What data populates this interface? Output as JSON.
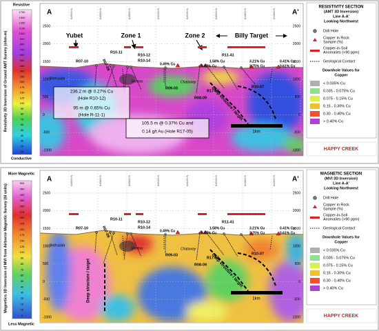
{
  "panels": [
    {
      "axis_label": "Resistivity 3D Inversion of Ground AMT Survey (ohm-m)",
      "colorbar": {
        "top": "Resistive",
        "bottom": "Conductive",
        "ticks": [
          "1750",
          "1500",
          "1250",
          "1100",
          "1000",
          "900",
          "800",
          "700",
          "600",
          "500",
          "400",
          "300",
          "250",
          "200",
          "175",
          "150",
          "125",
          "100",
          "90",
          "80",
          "70",
          "60",
          "50",
          "40",
          "30",
          "20",
          "10"
        ]
      },
      "section_ends": [
        "A",
        "A'"
      ],
      "elevations": [
        "2500",
        "2000",
        "1500",
        "1000",
        "500",
        "0",
        "-500",
        "-1000"
      ],
      "eastings": [
        "646000 N",
        "645800 N",
        "645600 N",
        "645400 N",
        "645200 N",
        "645000 N",
        "644800 N",
        "644600 N"
      ],
      "zones": [
        "Yubet",
        "Zone 1",
        "Zone 2",
        "Billy Target"
      ],
      "holes": [
        "R10-11",
        "R10-12",
        "R10-14",
        "R07-10",
        "R07-08",
        "R11-41",
        "R09-03",
        "R08-09",
        "R17-05",
        "R10-07"
      ],
      "assays": [
        "0.49% Cu",
        "1.58% Cu",
        "0.87% Cu",
        "3.21% Cu",
        "2.75% Cu",
        "0.41% Cu",
        "0.61% Cu"
      ],
      "units": [
        "Bethsaida",
        "Skeena",
        "Chataway"
      ],
      "structure": [
        "Deep structure / target"
      ],
      "scale": "1km",
      "intercepts": [
        [
          "236.2 m @ 0.27% Cu",
          "(Hole R10-12)",
          "95 m @ 0.65% Cu",
          "(Hole R-11-1)"
        ],
        [
          "105.5 m @ 0.37% Cu and",
          "0.14 g/t Au (Hole R17-05)"
        ]
      ],
      "legend": {
        "title": [
          "RESISTIVITY SECTION",
          "(AMT 3D Inversion)",
          "Line A-A'",
          "Looking Northwest"
        ],
        "items": [
          "Drill Hole",
          "Copper in Rock",
          "Sample (%)",
          "Copper-in-Soil",
          "Anomalies (>90 ppm)",
          "Geological Contact"
        ],
        "downhole_title": [
          "Downhole Values for",
          "Copper"
        ],
        "downhole": [
          "< 0.035% Cu",
          "0.035 - 0.075% Cu",
          "0.075 - 0.15% Cu",
          "0.15 - 0.30% Cu",
          "0.30 - 0.40% Cu",
          "> 0.40% Cu"
        ]
      },
      "logo": "HAPPY CREEK"
    },
    {
      "axis_label": "Magnetics 3D Inversion of MVI from Airborne Magnetic Survey (SI units)",
      "colorbar": {
        "top": "More Magnetic",
        "bottom": "Less Magnetic",
        "ticks": [
          "500",
          "450",
          "400",
          "350",
          "300",
          "275",
          "250",
          "225",
          "200",
          "175",
          "150",
          "125",
          "100",
          "90",
          "80",
          "70",
          "60",
          "50",
          "40",
          "30",
          "20",
          "15",
          "10",
          "5"
        ]
      },
      "section_ends": [
        "A",
        "A'"
      ],
      "elevations": [
        "2500",
        "2000",
        "1500",
        "1000",
        "500",
        "0",
        "-500",
        "-1000"
      ],
      "eastings": [
        "646000 N",
        "645800 N",
        "645600 N",
        "645400 N",
        "645200 N",
        "645000 N",
        "644800 N",
        "644600 N"
      ],
      "zones": [],
      "holes": [
        "R10-11",
        "R10-12",
        "R10-14",
        "R07-10",
        "R07-08",
        "R11-41",
        "R09-03",
        "R08-09",
        "R17-05",
        "R10-07"
      ],
      "assays": [
        "0.49% Cu",
        "1.58% Cu",
        "0.87% Cu",
        "3.21% Cu",
        "2.75% Cu",
        "0.41% Cu",
        "0.61% Cu"
      ],
      "units": [
        "Bethsaida",
        "Skeena",
        "Chataway"
      ],
      "structure": [
        "Deep structure / target",
        "Deep structure / target"
      ],
      "scale": "1km",
      "intercepts": [],
      "legend": {
        "title": [
          "MAGNETIC SECTION",
          "(MVI 3D Inversion)",
          "Line A-A'",
          "Looking Northwest"
        ],
        "items": [
          "Drill Hole",
          "Copper in Rock",
          "Sample (%)",
          "Copper-in-Soil",
          "Anomalies (>90 ppm)",
          "Geological Contact"
        ],
        "downhole_title": [
          "Downhole Values for",
          "Copper"
        ],
        "downhole": [
          "< 0.035% Cu",
          "0.035 - 0.075% Cu",
          "0.075 - 0.15% Cu",
          "0.15 - 0.30% Cu",
          "0.30 - 0.40% Cu",
          "> 0.40% Cu"
        ]
      },
      "logo": "HAPPY CREEK"
    }
  ]
}
